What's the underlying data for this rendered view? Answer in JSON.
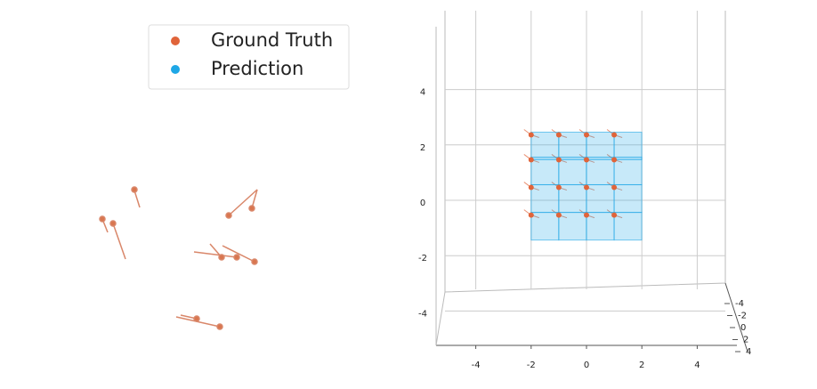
{
  "chart_data": {
    "type": "scatter3d",
    "xticks": [
      -4,
      -2,
      0,
      2,
      4
    ],
    "xlim": [
      -5,
      5.5
    ],
    "yticks": [
      -4,
      -2,
      0,
      2,
      4
    ],
    "ylim": [
      -4,
      4
    ],
    "zticks": [
      -4,
      -2,
      0,
      2,
      4
    ],
    "zlim": [
      -5,
      5.5
    ],
    "grid": true,
    "series": [
      {
        "name": "Ground Truth",
        "color": "#e0643a",
        "x": [
          -2,
          -1,
          0,
          1,
          -2,
          -1,
          0,
          1,
          -2,
          -1,
          0,
          1,
          -2,
          -1,
          0,
          1
        ],
        "z": [
          2.3,
          2.3,
          2.3,
          2.3,
          1.4,
          1.4,
          1.4,
          1.4,
          0.4,
          0.4,
          0.4,
          0.4,
          -0.6,
          -0.6,
          -0.6,
          -0.6
        ]
      },
      {
        "name": "Prediction",
        "color": "#1ea7e6",
        "x": [
          -2,
          -1,
          0,
          1,
          -2,
          -1,
          0,
          1,
          -2,
          -1,
          0,
          1,
          -2,
          -1,
          0,
          1
        ],
        "z": [
          2.3,
          2.3,
          2.3,
          2.3,
          1.4,
          1.4,
          1.4,
          1.4,
          0.4,
          0.4,
          0.4,
          0.4,
          -0.6,
          -0.6,
          -0.6,
          -0.6
        ]
      }
    ]
  }
}
